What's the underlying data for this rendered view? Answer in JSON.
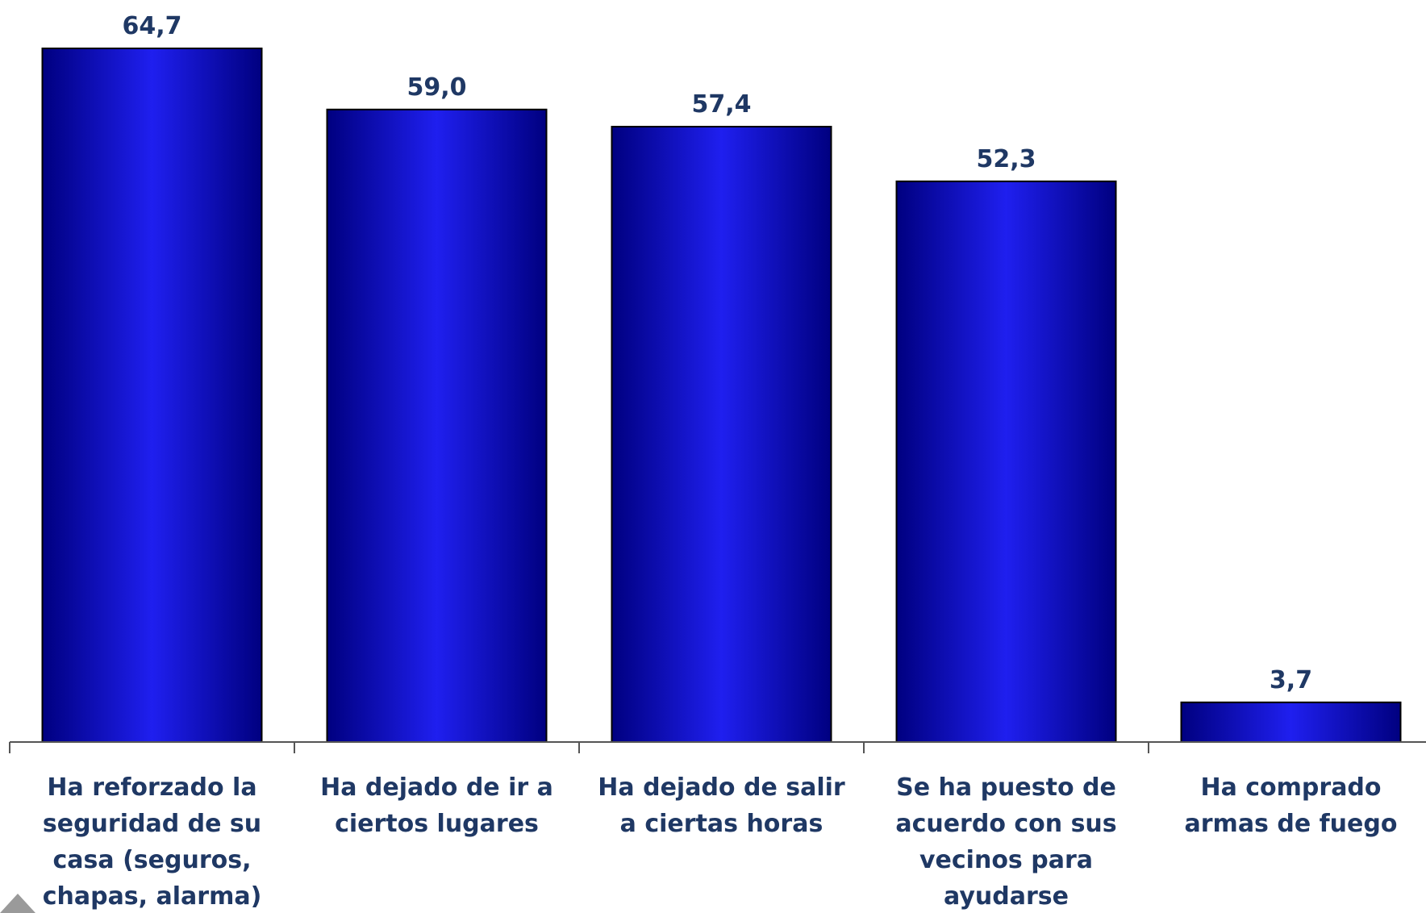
{
  "chart_data": {
    "type": "bar",
    "categories": [
      [
        "Ha reforzado la",
        "seguridad de su",
        "casa (seguros,",
        "chapas, alarma)"
      ],
      [
        "Ha dejado de ir a",
        "ciertos lugares"
      ],
      [
        "Ha dejado de salir",
        "a ciertas horas"
      ],
      [
        "Se ha puesto de",
        "acuerdo con sus",
        "vecinos para",
        "ayudarse"
      ],
      [
        "Ha comprado",
        "armas de fuego"
      ]
    ],
    "values": [
      64.7,
      59.0,
      57.4,
      52.3,
      3.7
    ],
    "value_labels": [
      "64,7",
      "59,0",
      "57,4",
      "52,3",
      "3,7"
    ],
    "title": "",
    "xlabel": "",
    "ylabel": "",
    "ylim": [
      0,
      64.7
    ],
    "grid": false,
    "legend": "none",
    "colors": {
      "bar_edge": "#000080",
      "bar_center": "#1F1FEF",
      "label_text": "#1F3864",
      "axis": "#555555"
    }
  }
}
